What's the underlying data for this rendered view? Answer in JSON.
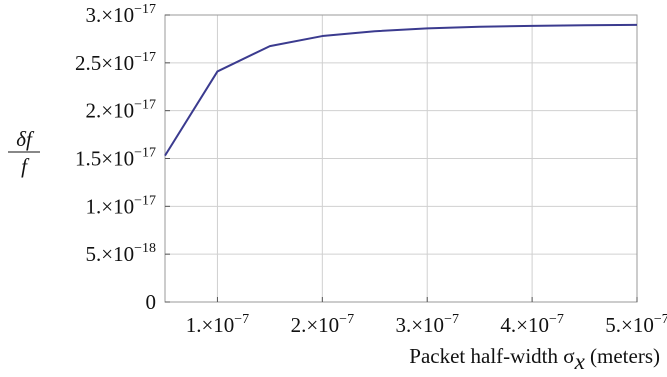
{
  "chart_data": {
    "type": "line",
    "title": "",
    "xlabel": {
      "main": "Packet half-width σ",
      "subscript": "x",
      "suffix": " (meters)"
    },
    "ylabel": {
      "numerator": "δf",
      "denominator": "f"
    },
    "xlim": [
      5e-08,
      5e-07
    ],
    "ylim": [
      0,
      3e-17
    ],
    "grid": true,
    "x_ticks": [
      {
        "value": 1e-07,
        "mantissa": "1.",
        "exponent": "−7"
      },
      {
        "value": 2e-07,
        "mantissa": "2.",
        "exponent": "−7"
      },
      {
        "value": 3e-07,
        "mantissa": "3.",
        "exponent": "−7"
      },
      {
        "value": 4e-07,
        "mantissa": "4.",
        "exponent": "−7"
      },
      {
        "value": 5e-07,
        "mantissa": "5.",
        "exponent": "−7"
      }
    ],
    "y_ticks": [
      {
        "value": 0,
        "mantissa": "0",
        "exponent": ""
      },
      {
        "value": 5e-18,
        "mantissa": "5.",
        "exponent": "−18"
      },
      {
        "value": 1e-17,
        "mantissa": "1.",
        "exponent": "−17"
      },
      {
        "value": 1.5e-17,
        "mantissa": "1.5",
        "exponent": "−17"
      },
      {
        "value": 2e-17,
        "mantissa": "2.",
        "exponent": "−17"
      },
      {
        "value": 2.5e-17,
        "mantissa": "2.5",
        "exponent": "−17"
      },
      {
        "value": 3e-17,
        "mantissa": "3.",
        "exponent": "−17"
      }
    ],
    "series": [
      {
        "color": "#3b3b8f",
        "x": [
          5e-08,
          1e-07,
          1.5e-07,
          2e-07,
          2.5e-07,
          3e-07,
          3.5e-07,
          4e-07,
          4.5e-07,
          5e-07
        ],
        "values": [
          1.53e-17,
          2.41e-17,
          2.675e-17,
          2.78e-17,
          2.83e-17,
          2.86e-17,
          2.877e-17,
          2.886e-17,
          2.893e-17,
          2.897e-17
        ]
      }
    ]
  }
}
